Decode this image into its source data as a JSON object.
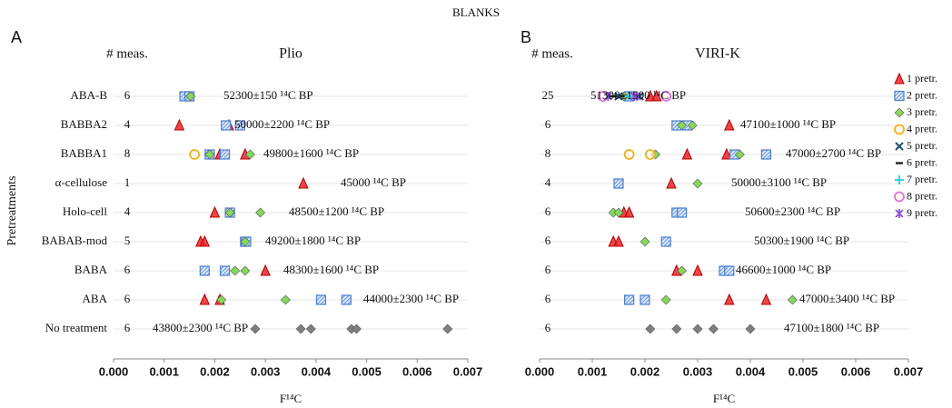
{
  "title": "BLANKS",
  "chart_data": [
    {
      "type": "scatter",
      "panel_label": "A",
      "title": "Plio",
      "count_header": "# meas.",
      "x_label": "F¹⁴C",
      "y_label": "Pretreatments",
      "categories": [
        "ABA-B",
        "BABBA2",
        "BABBA1",
        "α-cellulose",
        "Holo-cell",
        "BABAB-mod",
        "BABA",
        "ABA",
        "No treatment"
      ],
      "counts": [
        6,
        4,
        8,
        1,
        4,
        5,
        6,
        6,
        6
      ],
      "annotations": [
        "52300±150 ¹⁴C BP",
        "50000±2200 ¹⁴C BP",
        "49800±1600 ¹⁴C BP",
        "45000 ¹⁴C BP",
        "48500±1200 ¹⁴C BP",
        "49200±1800 ¹⁴C BP",
        "48300±1600 ¹⁴C BP",
        "44000±2300 ¹⁴C BP",
        "43800±2300 ¹⁴C BP"
      ],
      "xlim": [
        0,
        0.007
      ],
      "xticks": [
        {
          "value": 0,
          "label": "0.000"
        },
        {
          "value": 0.001,
          "label": "0.001"
        },
        {
          "value": 0.002,
          "label": "0.002"
        },
        {
          "value": 0.003,
          "label": "0.003"
        },
        {
          "value": 0.004,
          "label": "0.004"
        },
        {
          "value": 0.005,
          "label": "0.005"
        },
        {
          "value": 0.006,
          "label": "0.006"
        },
        {
          "value": 0.007,
          "label": "0.007"
        }
      ],
      "grid": true,
      "legend": false,
      "series": [
        {
          "color": "#e8262a",
          "marker": "triangle",
          "x": [
            0.0013,
            0.00228,
            0.0021,
            0.0026,
            0.00375,
            0.002,
            0.00172,
            0.0018,
            0.003,
            0.0018,
            0.0021
          ],
          "y": [
            "BABBA2",
            "BABBA2",
            "BABBA1",
            "BABBA1",
            "α-cellulose",
            "Holo-cell",
            "BABAB-mod",
            "BABAB-mod",
            "BABA",
            "ABA",
            "ABA"
          ]
        },
        {
          "color": "#4a7fd0",
          "marker": "hatched-square",
          "x": [
            0.0014,
            0.0015,
            0.00222,
            0.0025,
            0.0019,
            0.0022,
            0.0023,
            0.0026,
            0.00262,
            0.0018,
            0.0022,
            0.0041,
            0.0046
          ],
          "y": [
            "ABA-B",
            "ABA-B",
            "BABBA2",
            "BABBA2",
            "BABBA1",
            "BABBA1",
            "Holo-cell",
            "BABAB-mod",
            "BABAB-mod",
            "BABA",
            "BABA",
            "ABA",
            "ABA"
          ]
        },
        {
          "color": "#86d85a",
          "marker": "diamond",
          "x": [
            0.00152,
            0.0019,
            0.0027,
            0.0023,
            0.0029,
            0.0026,
            0.0024,
            0.0026,
            0.00213,
            0.0034
          ],
          "y": [
            "ABA-B",
            "BABBA1",
            "BABBA1",
            "Holo-cell",
            "Holo-cell",
            "BABAB-mod",
            "BABA",
            "BABA",
            "ABA",
            "ABA"
          ]
        },
        {
          "color": "#f0b020",
          "marker": "circle",
          "x": [
            0.0016
          ],
          "y": [
            "BABBA1"
          ]
        },
        {
          "color": "#7f7f7f",
          "marker": "diamond",
          "x": [
            0.0028,
            0.0037,
            0.0039,
            0.0047,
            0.0048,
            0.0066
          ],
          "y": [
            "No treatment",
            "No treatment",
            "No treatment",
            "No treatment",
            "No treatment",
            "No treatment"
          ]
        }
      ]
    },
    {
      "type": "scatter",
      "panel_label": "B",
      "title": "VIRI-K",
      "count_header": "# meas.",
      "x_label": "F¹⁴C",
      "counts": [
        25,
        6,
        8,
        4,
        6,
        6,
        6,
        6,
        6
      ],
      "annotations": [
        "51300±1500 ¹⁴C BP",
        "47100±1000 ¹⁴C BP",
        "47000±2700 ¹⁴C BP",
        "50000±3100 ¹⁴C BP",
        "50600±2300 ¹⁴C BP",
        "50300±1900 ¹⁴C BP",
        "46600±1000 ¹⁴C BP",
        "47000±3400 ¹⁴C BP",
        "47100±1800 ¹⁴C BP"
      ],
      "xlim": [
        0,
        0.007
      ],
      "xticks": [
        {
          "value": 0,
          "label": "0.000"
        },
        {
          "value": 0.001,
          "label": "0.001"
        },
        {
          "value": 0.002,
          "label": "0.002"
        },
        {
          "value": 0.003,
          "label": "0.003"
        },
        {
          "value": 0.004,
          "label": "0.004"
        },
        {
          "value": 0.005,
          "label": "0.005"
        },
        {
          "value": 0.006,
          "label": "0.006"
        },
        {
          "value": 0.007,
          "label": "0.007"
        }
      ],
      "grid": true,
      "legend": "upper right",
      "series": [
        {
          "name": "1 pretr.",
          "color": "#e8262a",
          "marker": "triangle",
          "x": [
            0.0021,
            0.00222,
            0.0036,
            0.0028,
            0.00355,
            0.0025,
            0.0016,
            0.0017,
            0.0014,
            0.0015,
            0.0026,
            0.003,
            0.0036,
            0.0043
          ],
          "y": [
            "ABA-B",
            "ABA-B",
            "BABBA2",
            "BABBA1",
            "BABBA1",
            "α-cellulose",
            "Holo-cell",
            "Holo-cell",
            "BABAB-mod",
            "BABAB-mod",
            "BABA",
            "BABA",
            "ABA",
            "ABA"
          ]
        },
        {
          "name": "2 pretr.",
          "color": "#4a7fd0",
          "marker": "hatched-square",
          "x": [
            0.0017,
            0.0026,
            0.0028,
            0.0037,
            0.0043,
            0.0015,
            0.0026,
            0.0027,
            0.0024,
            0.0035,
            0.0036,
            0.0017,
            0.002
          ],
          "y": [
            "ABA-B",
            "BABBA2",
            "BABBA2",
            "BABBA1",
            "BABBA1",
            "α-cellulose",
            "Holo-cell",
            "Holo-cell",
            "BABAB-mod",
            "BABA",
            "BABA",
            "ABA",
            "ABA"
          ]
        },
        {
          "name": "3 pretr.",
          "color": "#86d85a",
          "marker": "diamond",
          "x": [
            0.0016,
            0.0027,
            0.0029,
            0.0022,
            0.0038,
            0.003,
            0.0014,
            0.0015,
            0.002,
            0.0027,
            0.0024,
            0.0048
          ],
          "y": [
            "ABA-B",
            "BABBA2",
            "BABBA2",
            "BABBA1",
            "BABBA1",
            "α-cellulose",
            "Holo-cell",
            "Holo-cell",
            "BABAB-mod",
            "BABA",
            "ABA",
            "ABA"
          ]
        },
        {
          "name": "4 pretr.",
          "color": "#f0b020",
          "marker": "circle",
          "x": [
            0.0017,
            0.0021
          ],
          "y": [
            "BABBA1",
            "BABBA1"
          ]
        },
        {
          "name": "5 pretr.",
          "color": "#1f4e6e",
          "marker": "x",
          "x": [
            0.0015,
            0.0019
          ],
          "y": [
            "ABA-B",
            "ABA-B"
          ]
        },
        {
          "name": "6 pretr.",
          "color": "#222222",
          "marker": "dash",
          "x": [
            0.0014,
            0.0016
          ],
          "y": [
            "ABA-B",
            "ABA-B"
          ]
        },
        {
          "name": "7 pretr.",
          "color": "#2fd3e6",
          "marker": "plus",
          "x": [
            0.0017
          ],
          "y": [
            "ABA-B"
          ]
        },
        {
          "name": "8 pretr.",
          "color": "#e070e0",
          "marker": "circle",
          "x": [
            0.0012,
            0.0024
          ],
          "y": [
            "ABA-B",
            "ABA-B"
          ]
        },
        {
          "name": "9 pretr.",
          "color": "#8a55d0",
          "marker": "star",
          "x": [
            0.0013,
            0.0018,
            0.00185
          ],
          "y": [
            "ABA-B",
            "ABA-B",
            "ABA-B"
          ]
        },
        {
          "color": "#7f7f7f",
          "marker": "diamond",
          "x": [
            0.0021,
            0.0026,
            0.003,
            0.0033,
            0.004
          ],
          "y": [
            "No treatment",
            "No treatment",
            "No treatment",
            "No treatment",
            "No treatment"
          ]
        }
      ]
    }
  ]
}
